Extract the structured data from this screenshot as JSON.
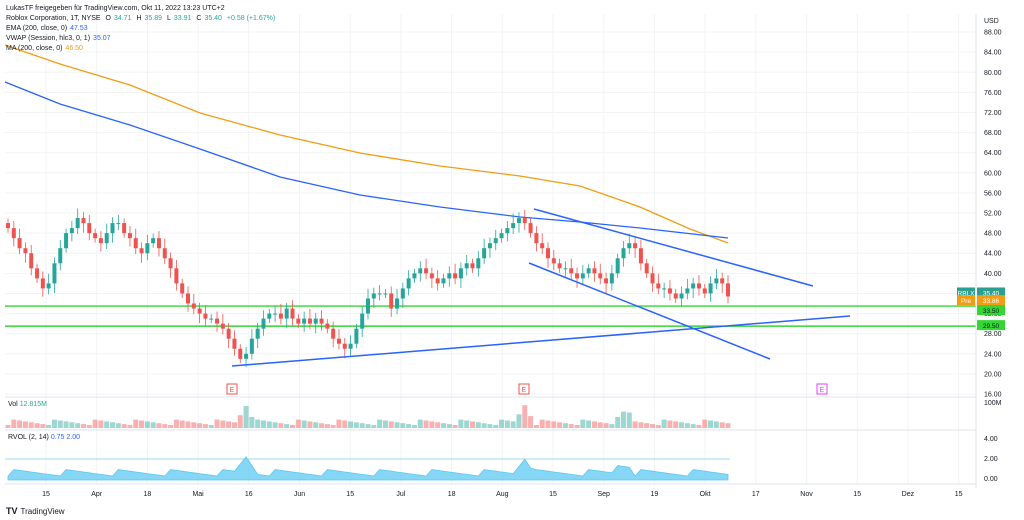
{
  "header": {
    "published_by": "LukasTF freigegeben für TradingView.com, Okt 11, 2022 13:23 UTC+2",
    "symbol": "Roblox Corporation, 1T, NYSE",
    "ohlc": {
      "o_label": "O",
      "o": "34.71",
      "h_label": "H",
      "h": "35.89",
      "l_label": "L",
      "l": "33.91",
      "c_label": "C",
      "c": "35.40",
      "change": "+0.58 (+1.67%)"
    },
    "indicators": [
      {
        "label": "EMA (200, close, 0)",
        "value": "47.53",
        "color": "#2962ff"
      },
      {
        "label": "VWAP (Session, hlc3, 0, 1)",
        "value": "35.07",
        "color": "#2962ff"
      },
      {
        "label": "MA (200, close, 0)",
        "value": "46.50",
        "color": "#f39c12"
      }
    ]
  },
  "volume_panel": {
    "label": "Vol",
    "value": "12.815M",
    "axis_label": "100M"
  },
  "rvol_panel": {
    "label": "RVOL (2, 14)",
    "v1": "0.75",
    "v2": "2.00",
    "axis_labels": [
      "4.00",
      "2.00",
      "0.00"
    ]
  },
  "price_axis": {
    "unit": "USD",
    "ticks": [
      "88.00",
      "84.00",
      "80.00",
      "76.00",
      "72.00",
      "68.00",
      "64.00",
      "60.00",
      "56.00",
      "52.00",
      "48.00",
      "44.00",
      "40.00",
      "36.00",
      "32.00",
      "28.00",
      "24.00",
      "20.00",
      "16.00"
    ]
  },
  "time_axis": {
    "labels": [
      "15",
      "Apr",
      "18",
      "Mai",
      "16",
      "Jun",
      "15",
      "Jul",
      "18",
      "Aug",
      "15",
      "Sep",
      "19",
      "Okt",
      "17",
      "Nov",
      "15",
      "Dez",
      "15"
    ]
  },
  "tags": [
    {
      "text": "RBLX",
      "value": "35.40",
      "color": "#2e9e8f"
    },
    {
      "text": "Pre",
      "value": "33.86",
      "color": "#f39c12"
    },
    {
      "text": "",
      "value": "33.50",
      "color": "#33d633"
    },
    {
      "text": "",
      "value": "29.50",
      "color": "#33d633"
    }
  ],
  "earnings_markers": [
    "E",
    "E",
    "E"
  ],
  "footer": {
    "brand": "TradingView",
    "logo": "TV"
  },
  "colors": {
    "up": "#26a69a",
    "down": "#ef5350",
    "ema": "#2962ff",
    "ma": "#f39c12",
    "support": "#33d633",
    "trend": "#2962ff",
    "rvol": "#5ec8f2"
  },
  "chart_data": {
    "type": "candlestick",
    "title": "Roblox Corporation, 1T, NYSE",
    "ylabel": "USD",
    "ylim": [
      16,
      90
    ],
    "close_series": [
      49,
      47,
      45,
      44,
      41,
      39,
      37,
      38,
      42,
      45,
      48,
      49,
      51,
      50,
      48,
      47,
      46,
      48,
      50,
      50,
      48,
      47,
      45,
      44,
      46,
      47,
      45,
      43,
      41,
      38,
      36,
      34,
      33,
      32,
      31,
      31,
      30,
      29,
      27,
      25,
      23,
      24,
      27,
      29,
      31,
      32,
      32,
      31,
      33,
      31,
      30,
      31,
      30,
      31,
      30,
      29,
      27,
      26,
      25,
      26,
      29,
      32,
      35,
      36,
      36,
      36,
      33,
      35,
      37,
      39,
      40,
      41,
      40,
      39,
      38,
      39,
      40,
      39,
      41,
      42,
      41,
      43,
      45,
      46,
      47,
      48,
      49,
      50,
      51,
      50,
      48,
      46,
      45,
      43,
      42,
      41,
      41,
      40,
      39,
      40,
      41,
      40,
      39,
      38,
      40,
      43,
      45,
      46,
      45,
      42,
      40,
      38,
      37,
      37,
      36,
      35,
      36,
      37,
      38,
      37,
      36,
      38,
      39,
      38,
      35.4
    ],
    "support_lines": [
      33.5,
      29.5
    ],
    "last_price": 35.4,
    "pre_market": 33.86
  }
}
